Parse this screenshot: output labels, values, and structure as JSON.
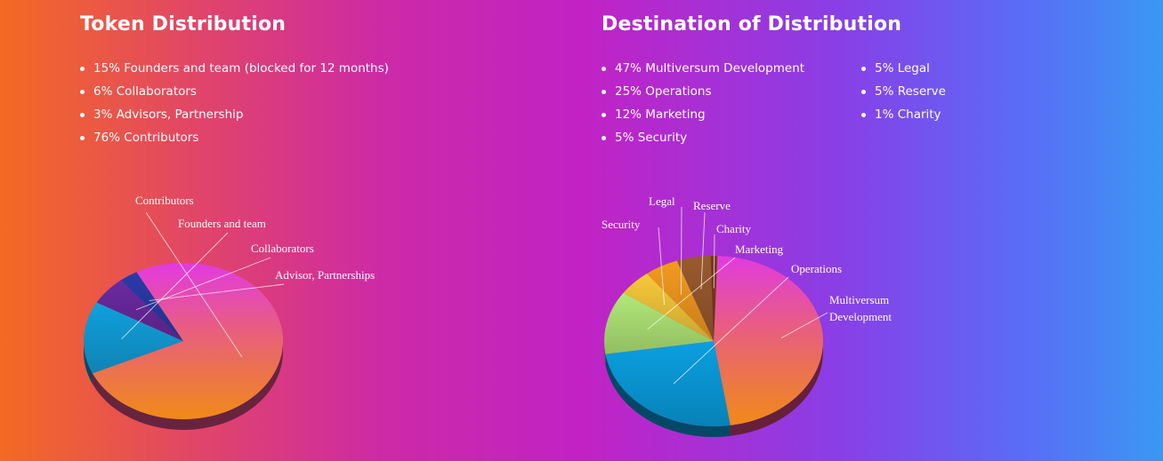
{
  "token_section": {
    "title": "Token Distribution",
    "items": [
      "15% Founders and team (blocked for 12 months)",
      "6% Collaborators",
      "3% Advisors, Partnership",
      "76% Contributors"
    ]
  },
  "destination_section": {
    "title": "Destination of Distribution",
    "items_col1": [
      "47% Multiversum Development",
      "25% Operations",
      "12% Marketing",
      "5% Security"
    ],
    "items_col2": [
      "5% Legal",
      "5% Reserve",
      "1% Charity"
    ]
  },
  "chart_data": [
    {
      "type": "pie",
      "style": "3d",
      "slices": [
        {
          "label": "Contributors",
          "value": 76,
          "color": "#e8508a"
        },
        {
          "label": "Founders and team",
          "value": 15,
          "color": "#11a0dc"
        },
        {
          "label": "Collaborators",
          "value": 6,
          "color": "#6a2aa0"
        },
        {
          "label": "Advisor, Partnerships",
          "value": 3,
          "color": "#2b3aa8"
        }
      ]
    },
    {
      "type": "pie",
      "style": "3d",
      "slices": [
        {
          "label": "Multiversum Development",
          "value": 47,
          "color": "#e2467e"
        },
        {
          "label": "Operations",
          "value": 25,
          "color": "#0a9fe0"
        },
        {
          "label": "Marketing",
          "value": 12,
          "color": "#b2e878"
        },
        {
          "label": "Security",
          "value": 5,
          "color": "#f6c93a"
        },
        {
          "label": "Legal",
          "value": 5,
          "color": "#f39a1f"
        },
        {
          "label": "Reserve",
          "value": 5,
          "color": "#9a5a2e"
        },
        {
          "label": "Charity",
          "value": 1,
          "color": "#7a3a1a"
        }
      ]
    }
  ]
}
